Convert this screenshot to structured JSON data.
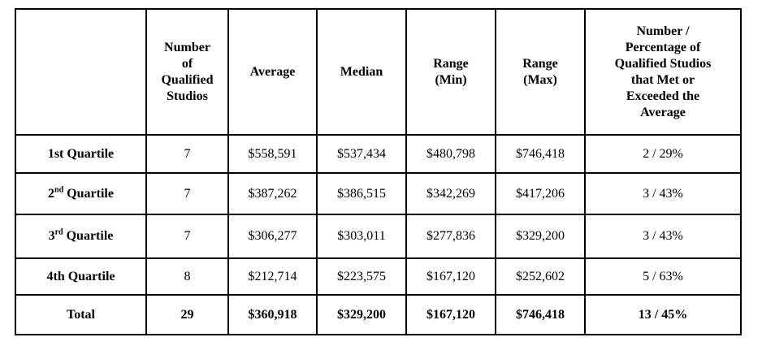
{
  "headers": [
    "",
    "Number of Qualified Studios",
    "Average",
    "Median",
    "Range (Min)",
    "Range (Max)",
    "Number / Percentage of Qualified Studios that Met or Exceeded the Average"
  ],
  "header_lines": {
    "studios": [
      "Number",
      "of",
      "Qualified",
      "Studios"
    ],
    "average": "Average",
    "median": "Median",
    "min": [
      "Range",
      "(Min)"
    ],
    "max": [
      "Range",
      "(Max)"
    ],
    "met": [
      "Number /",
      "Percentage of",
      "Qualified Studios",
      "that Met or",
      "Exceeded the",
      "Average"
    ]
  },
  "rows": [
    {
      "label_num": "1st",
      "label_sup": "",
      "label_rest": " Quartile",
      "studios": "7",
      "average": "$558,591",
      "median": "$537,434",
      "min": "$480,798",
      "max": "$746,418",
      "met": "2 / 29%"
    },
    {
      "label_num": "2",
      "label_sup": "nd",
      "label_rest": " Quartile",
      "studios": "7",
      "average": "$387,262",
      "median": "$386,515",
      "min": "$342,269",
      "max": "$417,206",
      "met": "3 / 43%"
    },
    {
      "label_num": "3",
      "label_sup": "rd",
      "label_rest": " Quartile",
      "studios": "7",
      "average": "$306,277",
      "median": "$303,011",
      "min": "$277,836",
      "max": "$329,200",
      "met": "3 / 43%"
    },
    {
      "label_num": "4th",
      "label_sup": "",
      "label_rest": " Quartile",
      "studios": "8",
      "average": "$212,714",
      "median": "$223,575",
      "min": "$167,120",
      "max": "$252,602",
      "met": "5 / 63%"
    }
  ],
  "total": {
    "label": "Total",
    "studios": "29",
    "average": "$360,918",
    "median": "$329,200",
    "min": "$167,120",
    "max": "$746,418",
    "met": "13 / 45%"
  }
}
